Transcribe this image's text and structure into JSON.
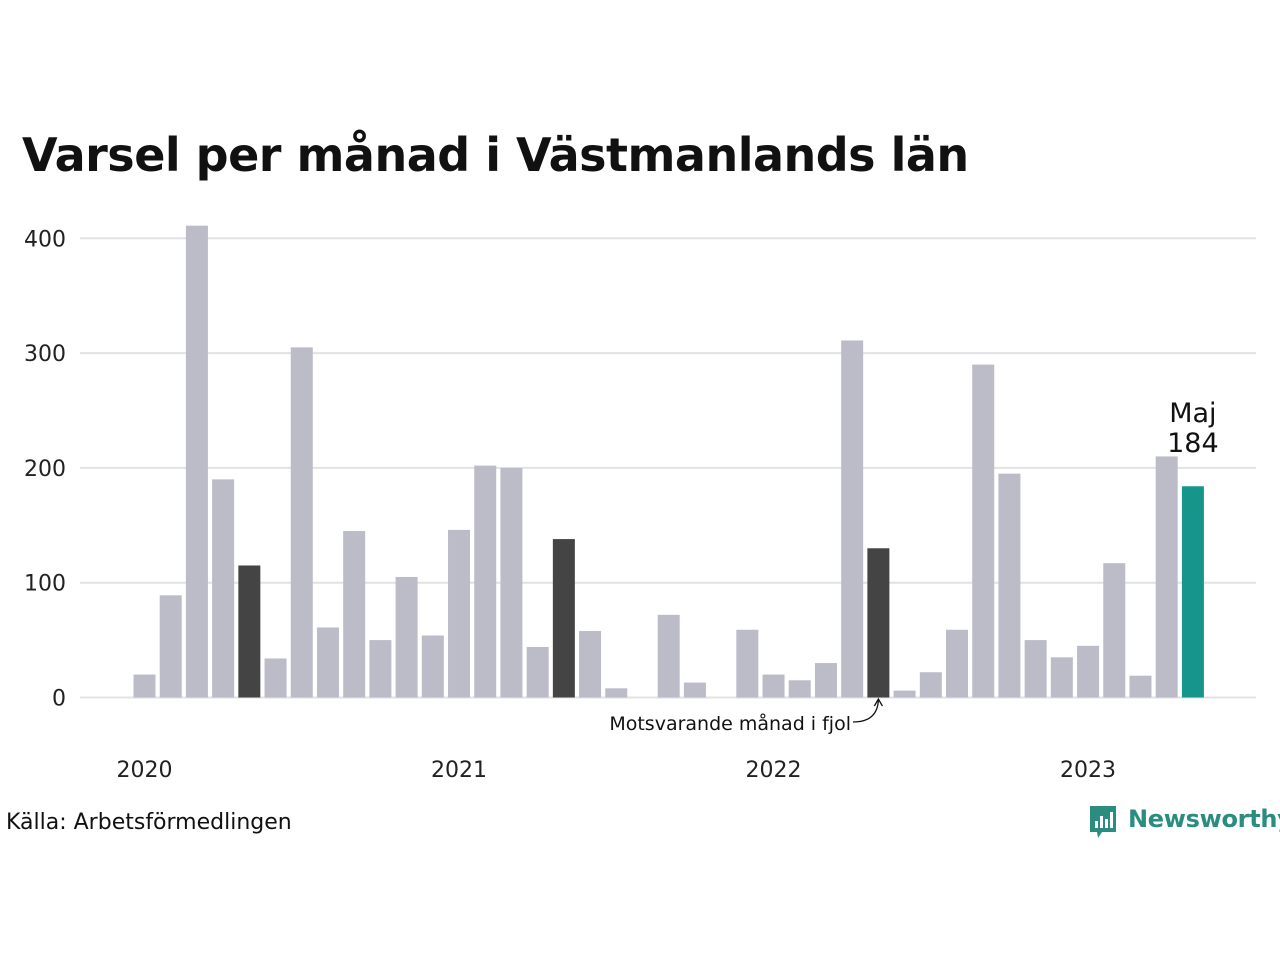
{
  "title": "Varsel per månad i Västmanlands län",
  "source": "Källa: Arbetsförmedlingen",
  "brand": {
    "name": "Newsworthy",
    "icon": "newsworthy-logo-icon",
    "color": "#2b8c80"
  },
  "colors": {
    "bar": "#bcbbc8",
    "same_month_last_year": "#444444",
    "current": "#16958a",
    "grid": "#e2e2e6"
  },
  "chart_data": {
    "type": "bar",
    "title": "Varsel per månad i Västmanlands län",
    "xlabel": "",
    "ylabel": "",
    "ylim": [
      0,
      420
    ],
    "yticks": [
      0,
      100,
      200,
      300,
      400
    ],
    "x_year_labels": [
      {
        "label": "2020",
        "at": "2020-01"
      },
      {
        "label": "2021",
        "at": "2021-01"
      },
      {
        "label": "2022",
        "at": "2022-01"
      },
      {
        "label": "2023",
        "at": "2023-01"
      }
    ],
    "grid": true,
    "legend": "none",
    "categories": [
      "2020-01",
      "2020-02",
      "2020-03",
      "2020-04",
      "2020-05",
      "2020-06",
      "2020-07",
      "2020-08",
      "2020-09",
      "2020-10",
      "2020-11",
      "2020-12",
      "2021-01",
      "2021-02",
      "2021-03",
      "2021-04",
      "2021-05",
      "2021-06",
      "2021-07",
      "2021-08",
      "2021-09",
      "2021-10",
      "2021-11",
      "2021-12",
      "2022-01",
      "2022-02",
      "2022-03",
      "2022-04",
      "2022-05",
      "2022-06",
      "2022-07",
      "2022-08",
      "2022-09",
      "2022-10",
      "2022-11",
      "2022-12",
      "2023-01",
      "2023-02",
      "2023-03",
      "2023-04",
      "2023-05"
    ],
    "values": [
      20,
      89,
      411,
      190,
      115,
      34,
      305,
      61,
      145,
      50,
      105,
      54,
      146,
      202,
      200,
      44,
      138,
      58,
      8,
      0,
      72,
      13,
      0,
      59,
      20,
      15,
      30,
      311,
      130,
      6,
      22,
      59,
      290,
      195,
      50,
      35,
      45,
      117,
      19,
      210,
      184
    ],
    "highlight_same_month": [
      "2020-05",
      "2021-05",
      "2022-05"
    ],
    "highlight_current": "2023-05",
    "annotations": [
      {
        "text": "Motsvarande månad i fjol",
        "target": "2022-05"
      },
      {
        "label": "Maj",
        "value": "184",
        "target": "2023-05"
      }
    ]
  }
}
